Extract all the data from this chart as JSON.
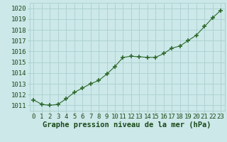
{
  "x": [
    0,
    1,
    2,
    3,
    4,
    5,
    6,
    7,
    8,
    9,
    10,
    11,
    12,
    13,
    14,
    15,
    16,
    17,
    18,
    19,
    20,
    21,
    22,
    23
  ],
  "y": [
    1011.5,
    1011.1,
    1011.0,
    1011.1,
    1011.6,
    1012.2,
    1012.6,
    1013.0,
    1013.3,
    1013.9,
    1014.6,
    1015.45,
    1015.55,
    1015.5,
    1015.45,
    1015.45,
    1015.8,
    1016.3,
    1016.5,
    1017.0,
    1017.5,
    1018.3,
    1019.1,
    1019.8
  ],
  "line_color": "#2d6a2d",
  "marker": "+",
  "marker_size": 4,
  "marker_lw": 1.2,
  "bg_color": "#cce8e8",
  "grid_color": "#aacfcf",
  "xlabel": "Graphe pression niveau de la mer (hPa)",
  "xlabel_fontsize": 7.5,
  "xlabel_color": "#1a4a1a",
  "xlabel_bold": true,
  "tick_color": "#1a4a1a",
  "tick_fontsize": 6.5,
  "ylim": [
    1010.5,
    1020.5
  ],
  "yticks": [
    1011,
    1012,
    1013,
    1014,
    1015,
    1016,
    1017,
    1018,
    1019,
    1020
  ],
  "xticks": [
    0,
    1,
    2,
    3,
    4,
    5,
    6,
    7,
    8,
    9,
    10,
    11,
    12,
    13,
    14,
    15,
    16,
    17,
    18,
    19,
    20,
    21,
    22,
    23
  ],
  "xlim": [
    -0.5,
    23.5
  ]
}
